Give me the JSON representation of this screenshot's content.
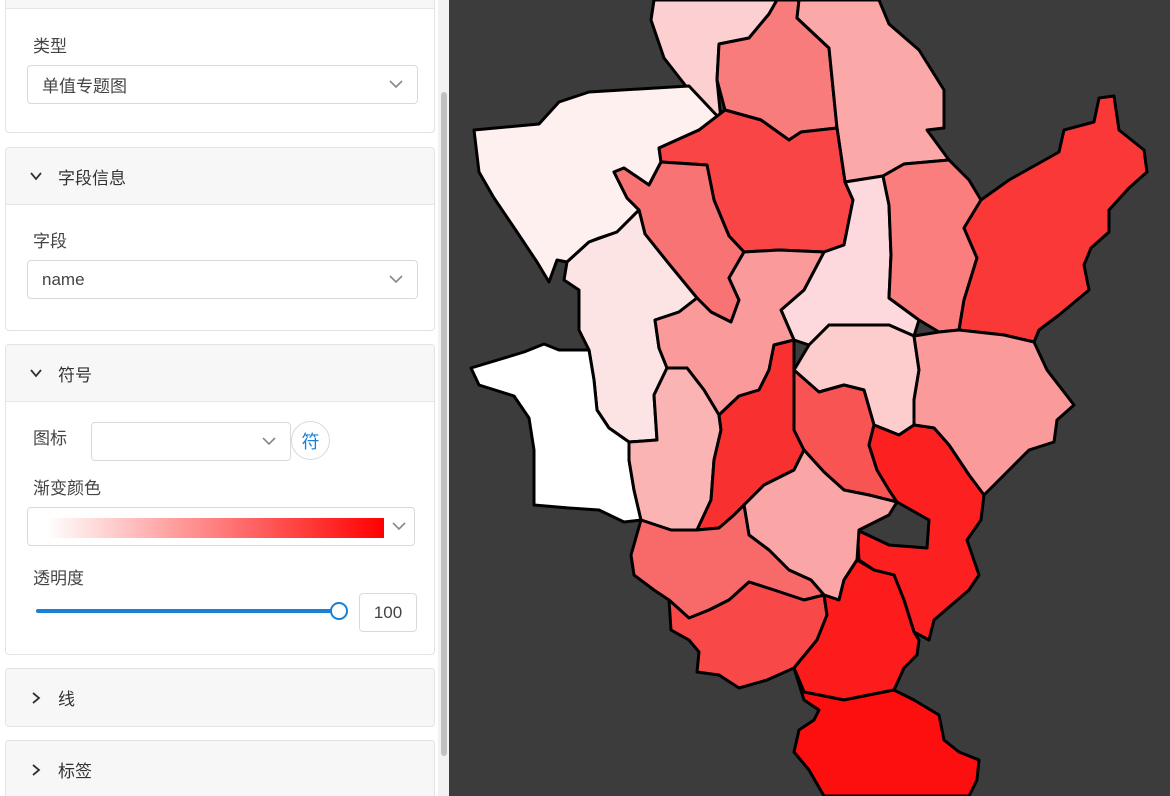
{
  "panel": {
    "type_section": {
      "label": "类型",
      "value": "单值专题图"
    },
    "field_section": {
      "title": "字段信息",
      "label": "字段",
      "value": "name"
    },
    "symbol_section": {
      "title": "符号",
      "icon_label": "图标",
      "icon_value": "",
      "symbol_button_label": "符",
      "gradient_label": "渐变颜色",
      "gradient_start_color": "#ffffff",
      "gradient_end_color": "#ff0000",
      "opacity_label": "透明度",
      "opacity_value": 100,
      "opacity_max": 100
    },
    "line_section": {
      "title": "线"
    },
    "label_section": {
      "title": "标签"
    }
  },
  "map": {
    "background_color": "#3c3c3c",
    "border_color": "#000000"
  }
}
